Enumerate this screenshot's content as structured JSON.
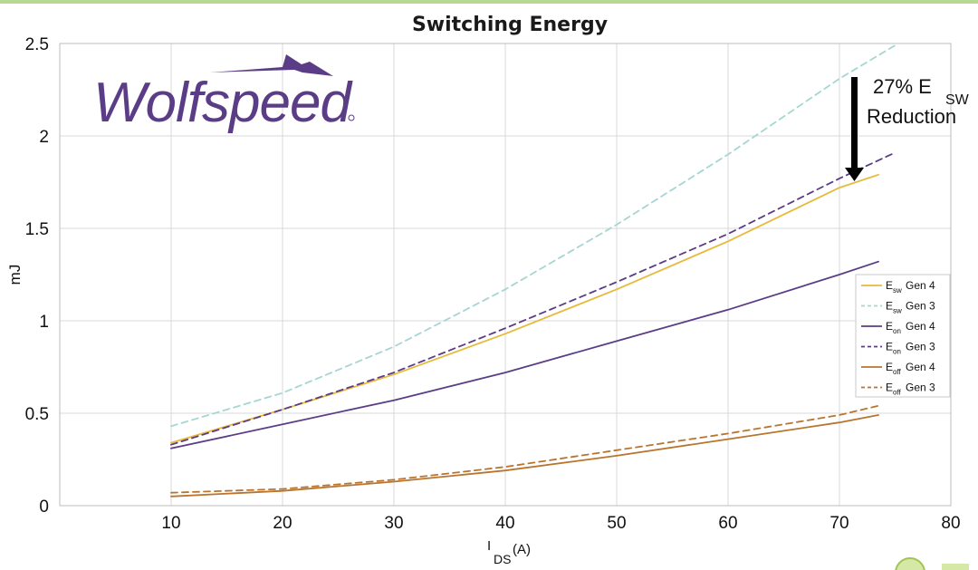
{
  "chart_data": {
    "type": "line",
    "title": "Switching Energy",
    "ylabel": "mJ",
    "xlabel_main": "I",
    "xlabel_sub": "DS",
    "xlabel_unit": "(A)",
    "xlim": [
      0,
      80
    ],
    "ylim": [
      0,
      2.5
    ],
    "xticks": [
      "10",
      "20",
      "30",
      "40",
      "50",
      "60",
      "70",
      "80"
    ],
    "yticks": [
      "0",
      "0.5",
      "1",
      "1.5",
      "2",
      "2.5"
    ],
    "grid": true,
    "legend_position": "right",
    "series": [
      {
        "legend_main": "E",
        "legend_sub": "sw",
        "legend_rest": "Gen 4",
        "color": "#e8b93a",
        "dash": "solid",
        "x": [
          10,
          20,
          30,
          40,
          50,
          60,
          70,
          73.5
        ],
        "y": [
          0.34,
          0.52,
          0.71,
          0.93,
          1.17,
          1.43,
          1.72,
          1.79
        ]
      },
      {
        "legend_main": "E",
        "legend_sub": "sw",
        "legend_rest": "Gen 3",
        "color": "#a6d6d2",
        "dash": "dashed",
        "x": [
          10,
          20,
          30,
          40,
          50,
          60,
          70,
          75
        ],
        "y": [
          0.43,
          0.61,
          0.86,
          1.17,
          1.52,
          1.9,
          2.31,
          2.49
        ]
      },
      {
        "legend_main": "E",
        "legend_sub": "on",
        "legend_rest": "Gen 4",
        "color": "#5b3d87",
        "dash": "solid",
        "x": [
          10,
          20,
          30,
          40,
          50,
          60,
          70,
          73.5
        ],
        "y": [
          0.31,
          0.44,
          0.57,
          0.72,
          0.89,
          1.06,
          1.25,
          1.32
        ]
      },
      {
        "legend_main": "E",
        "legend_sub": "on",
        "legend_rest": "Gen 3",
        "color": "#5b3d87",
        "dash": "dashed",
        "x": [
          10,
          20,
          30,
          40,
          50,
          60,
          70,
          75
        ],
        "y": [
          0.33,
          0.52,
          0.72,
          0.96,
          1.21,
          1.47,
          1.77,
          1.91
        ]
      },
      {
        "legend_main": "E",
        "legend_sub": "off",
        "legend_rest": "Gen 4",
        "color": "#b9742e",
        "dash": "solid",
        "x": [
          10,
          20,
          30,
          40,
          50,
          60,
          70,
          73.5
        ],
        "y": [
          0.05,
          0.08,
          0.13,
          0.19,
          0.27,
          0.36,
          0.45,
          0.49
        ]
      },
      {
        "legend_main": "E",
        "legend_sub": "off",
        "legend_rest": "Gen 3",
        "color": "#b9742e",
        "dash": "dashed",
        "x": [
          10,
          20,
          30,
          40,
          50,
          60,
          70,
          73.5
        ],
        "y": [
          0.07,
          0.09,
          0.14,
          0.21,
          0.3,
          0.39,
          0.49,
          0.54
        ]
      }
    ],
    "annotation": {
      "line1": "27% E",
      "sub": "SW",
      "line2": "Reduction"
    }
  },
  "logo": {
    "text": "Wolfspeed",
    "color": "#5b3d87"
  }
}
